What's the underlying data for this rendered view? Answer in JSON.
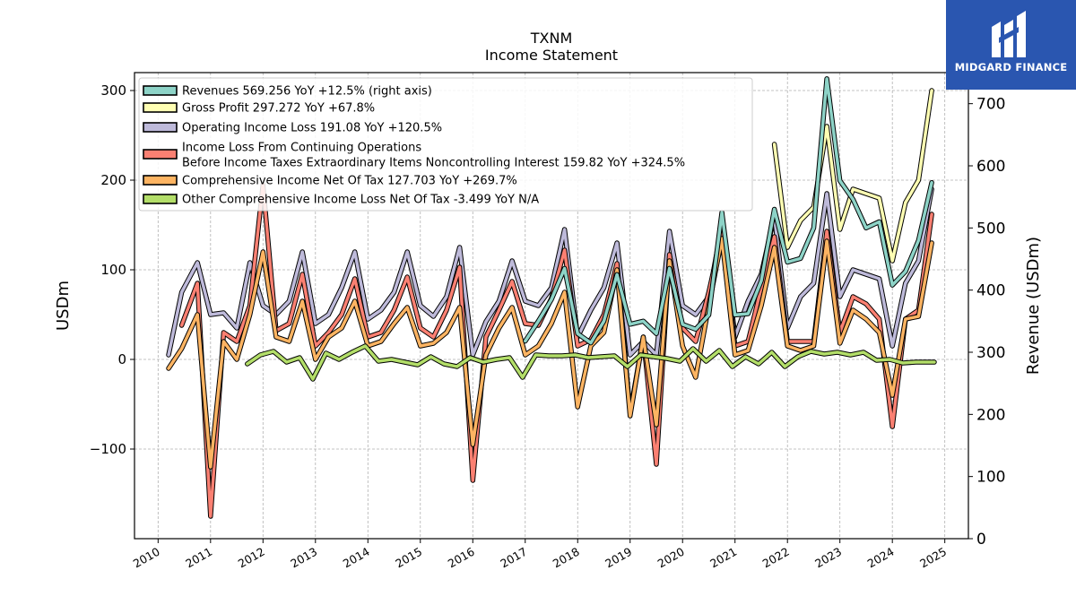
{
  "chart_data": {
    "type": "line",
    "title": "TXNM",
    "subtitle": "Income Statement",
    "ylabel": "USDm",
    "ylabel_right": "Revenue (USDm)",
    "ylim": [
      -200,
      320
    ],
    "ylim_right": [
      0,
      750
    ],
    "xlim": [
      2009.55,
      2025.45
    ],
    "yticks": [
      -100,
      0,
      100,
      200,
      300
    ],
    "yticks_right": [
      0,
      100,
      200,
      300,
      400,
      500,
      600,
      700
    ],
    "xticks": [
      "2010",
      "2011",
      "2012",
      "2013",
      "2014",
      "2015",
      "2016",
      "2017",
      "2018",
      "2019",
      "2020",
      "2021",
      "2022",
      "2023",
      "2024",
      "2025"
    ],
    "grid": true,
    "legend_position": "top-left",
    "series": [
      {
        "name": "Revenues",
        "legend_label": "Revenues  569.256 YoY +12.5% (right axis)",
        "color": "#8dd3c7",
        "axis": "right",
        "x": [
          2017.0,
          2017.25,
          2017.5,
          2017.75,
          2018.0,
          2018.25,
          2018.5,
          2018.75,
          2019.0,
          2019.25,
          2019.5,
          2019.75,
          2020.0,
          2020.25,
          2020.5,
          2020.75,
          2021.0,
          2021.25,
          2021.5,
          2021.75,
          2022.0,
          2022.25,
          2022.5,
          2022.75,
          2023.0,
          2023.25,
          2023.5,
          2023.75,
          2024.0,
          2024.25,
          2024.5,
          2024.75
        ],
        "y": [
          318,
          350,
          385,
          435,
          330,
          315,
          350,
          425,
          345,
          350,
          330,
          435,
          345,
          337,
          360,
          525,
          360,
          362,
          415,
          530,
          445,
          451,
          500,
          740,
          576,
          546,
          500,
          510,
          408,
          430,
          480,
          573
        ]
      },
      {
        "name": "Gross Profit",
        "legend_label": "Gross Profit  297.272 YoY +67.8%",
        "color": "#ffffb3",
        "axis": "left",
        "x": [
          2021.75,
          2022.0,
          2022.25,
          2022.5,
          2022.75,
          2023.0,
          2023.25,
          2023.5,
          2023.75,
          2024.0,
          2024.25,
          2024.5,
          2024.75
        ],
        "y": [
          240,
          125,
          155,
          170,
          260,
          145,
          190,
          185,
          180,
          110,
          175,
          200,
          300
        ]
      },
      {
        "name": "Operating Income Loss",
        "legend_label": "Operating Income Loss  191.08 YoY +120.5%",
        "color": "#bebada",
        "axis": "left",
        "x": [
          2010.2,
          2010.45,
          2010.75,
          2011.0,
          2011.25,
          2011.5,
          2011.75,
          2012.0,
          2012.25,
          2012.5,
          2012.75,
          2013.0,
          2013.25,
          2013.5,
          2013.75,
          2014.0,
          2014.25,
          2014.5,
          2014.75,
          2015.0,
          2015.25,
          2015.5,
          2015.75,
          2016.0,
          2016.25,
          2016.5,
          2016.75,
          2017.0,
          2017.25,
          2017.5,
          2017.75,
          2018.0,
          2018.25,
          2018.5,
          2018.75,
          2019.0,
          2019.25,
          2019.5,
          2019.75,
          2020.0,
          2020.25,
          2020.5,
          2020.75,
          2021.0,
          2021.25,
          2021.5,
          2021.75,
          2022.0,
          2022.25,
          2022.5,
          2022.75,
          2023.0,
          2023.25,
          2023.5,
          2023.75,
          2024.0,
          2024.25,
          2024.5,
          2024.75
        ],
        "y": [
          5,
          75,
          108,
          50,
          52,
          35,
          108,
          60,
          50,
          65,
          120,
          40,
          50,
          80,
          120,
          45,
          55,
          75,
          120,
          60,
          48,
          70,
          125,
          5,
          42,
          65,
          110,
          65,
          60,
          80,
          145,
          25,
          55,
          80,
          130,
          5,
          20,
          5,
          143,
          60,
          50,
          70,
          150,
          25,
          65,
          95,
          160,
          35,
          70,
          85,
          185,
          70,
          100,
          95,
          90,
          15,
          85,
          110,
          190
        ]
      },
      {
        "name": "Income Loss From Continuing Operations Before Income Taxes Extraordinary Items Noncontrolling Interest",
        "legend_line1": "Income Loss From Continuing Operations",
        "legend_line2": "Before Income Taxes Extraordinary Items Noncontrolling Interest  159.82 YoY +324.5%",
        "color": "#fb8072",
        "axis": "left",
        "x": [
          2010.45,
          2010.75,
          2011.0,
          2011.25,
          2011.5,
          2011.75,
          2012.0,
          2012.25,
          2012.5,
          2012.75,
          2013.0,
          2013.25,
          2013.5,
          2013.75,
          2014.0,
          2014.25,
          2014.5,
          2014.75,
          2015.0,
          2015.25,
          2015.5,
          2015.75,
          2016.0,
          2016.25,
          2016.5,
          2016.75,
          2017.0,
          2017.25,
          2017.5,
          2017.75,
          2018.0,
          2018.25,
          2018.5,
          2018.75,
          2019.0,
          2019.25,
          2019.5,
          2019.75,
          2020.0,
          2020.25,
          2020.5,
          2020.75,
          2021.0,
          2021.25,
          2021.5,
          2021.75,
          2022.0,
          2022.25,
          2022.5,
          2022.75,
          2023.0,
          2023.25,
          2023.5,
          2023.75,
          2024.0,
          2024.25,
          2024.5,
          2024.75
        ],
        "y": [
          38,
          85,
          -175,
          30,
          20,
          60,
          195,
          32,
          40,
          95,
          15,
          30,
          50,
          90,
          25,
          30,
          55,
          92,
          35,
          25,
          55,
          103,
          -135,
          25,
          55,
          87,
          40,
          38,
          68,
          122,
          15,
          22,
          50,
          107,
          -60,
          25,
          -117,
          117,
          35,
          20,
          75,
          140,
          15,
          20,
          80,
          137,
          20,
          20,
          20,
          143,
          30,
          70,
          62,
          45,
          -75,
          45,
          55,
          162
        ]
      },
      {
        "name": "Comprehensive Income Net Of Tax",
        "legend_label": "Comprehensive Income Net Of Tax  127.703 YoY +269.7%",
        "color": "#fdb462",
        "axis": "left",
        "x": [
          2010.2,
          2010.45,
          2010.75,
          2011.0,
          2011.25,
          2011.5,
          2011.75,
          2012.0,
          2012.25,
          2012.5,
          2012.75,
          2013.0,
          2013.25,
          2013.5,
          2013.75,
          2014.0,
          2014.25,
          2014.5,
          2014.75,
          2015.0,
          2015.25,
          2015.5,
          2015.75,
          2016.0,
          2016.25,
          2016.5,
          2016.75,
          2017.0,
          2017.25,
          2017.5,
          2017.75,
          2018.0,
          2018.25,
          2018.5,
          2018.75,
          2019.0,
          2019.25,
          2019.5,
          2019.75,
          2020.0,
          2020.25,
          2020.5,
          2020.75,
          2021.0,
          2021.25,
          2021.5,
          2021.75,
          2022.0,
          2022.25,
          2022.5,
          2022.75,
          2023.0,
          2023.25,
          2023.5,
          2023.75,
          2024.0,
          2024.25,
          2024.5,
          2024.75
        ],
        "y": [
          -10,
          12,
          50,
          -120,
          20,
          0,
          50,
          120,
          25,
          20,
          65,
          0,
          25,
          35,
          65,
          15,
          20,
          40,
          58,
          15,
          18,
          30,
          58,
          -95,
          5,
          35,
          58,
          5,
          15,
          40,
          75,
          -53,
          15,
          30,
          100,
          -63,
          25,
          -73,
          110,
          15,
          -20,
          60,
          135,
          5,
          10,
          60,
          125,
          15,
          10,
          15,
          132,
          18,
          55,
          45,
          30,
          -40,
          45,
          48,
          130
        ]
      },
      {
        "name": "Other Comprehensive Income Loss Net Of Tax",
        "legend_label": "Other Comprehensive Income Loss Net Of Tax  -3.499 YoY N/A",
        "color": "#b3de69",
        "axis": "left",
        "x": [
          2011.7,
          2011.95,
          2012.2,
          2012.45,
          2012.7,
          2012.95,
          2013.2,
          2013.45,
          2013.7,
          2013.95,
          2014.2,
          2014.45,
          2014.7,
          2014.95,
          2015.2,
          2015.45,
          2015.7,
          2015.95,
          2016.2,
          2016.45,
          2016.7,
          2016.95,
          2017.2,
          2017.45,
          2017.7,
          2017.95,
          2018.2,
          2018.45,
          2018.7,
          2018.95,
          2019.2,
          2019.45,
          2019.7,
          2019.95,
          2020.2,
          2020.45,
          2020.7,
          2020.95,
          2021.2,
          2021.45,
          2021.7,
          2021.95,
          2022.2,
          2022.45,
          2022.7,
          2022.95,
          2023.2,
          2023.45,
          2023.7,
          2023.95,
          2024.2,
          2024.45,
          2024.7,
          2024.8
        ],
        "y": [
          -5,
          5,
          9,
          -3,
          2,
          -22,
          7,
          0,
          8,
          15,
          -2,
          0,
          -3,
          -6,
          3,
          -5,
          -8,
          2,
          -3,
          0,
          2,
          -20,
          5,
          4,
          4,
          5,
          2,
          3,
          4,
          -8,
          5,
          3,
          1,
          -2,
          12,
          -2,
          10,
          -8,
          3,
          -5,
          8,
          -8,
          3,
          9,
          6,
          8,
          5,
          8,
          -1,
          0,
          -4,
          -3,
          -3,
          -3
        ]
      }
    ]
  },
  "logo": {
    "text": "MIDGARD FINANCE"
  }
}
